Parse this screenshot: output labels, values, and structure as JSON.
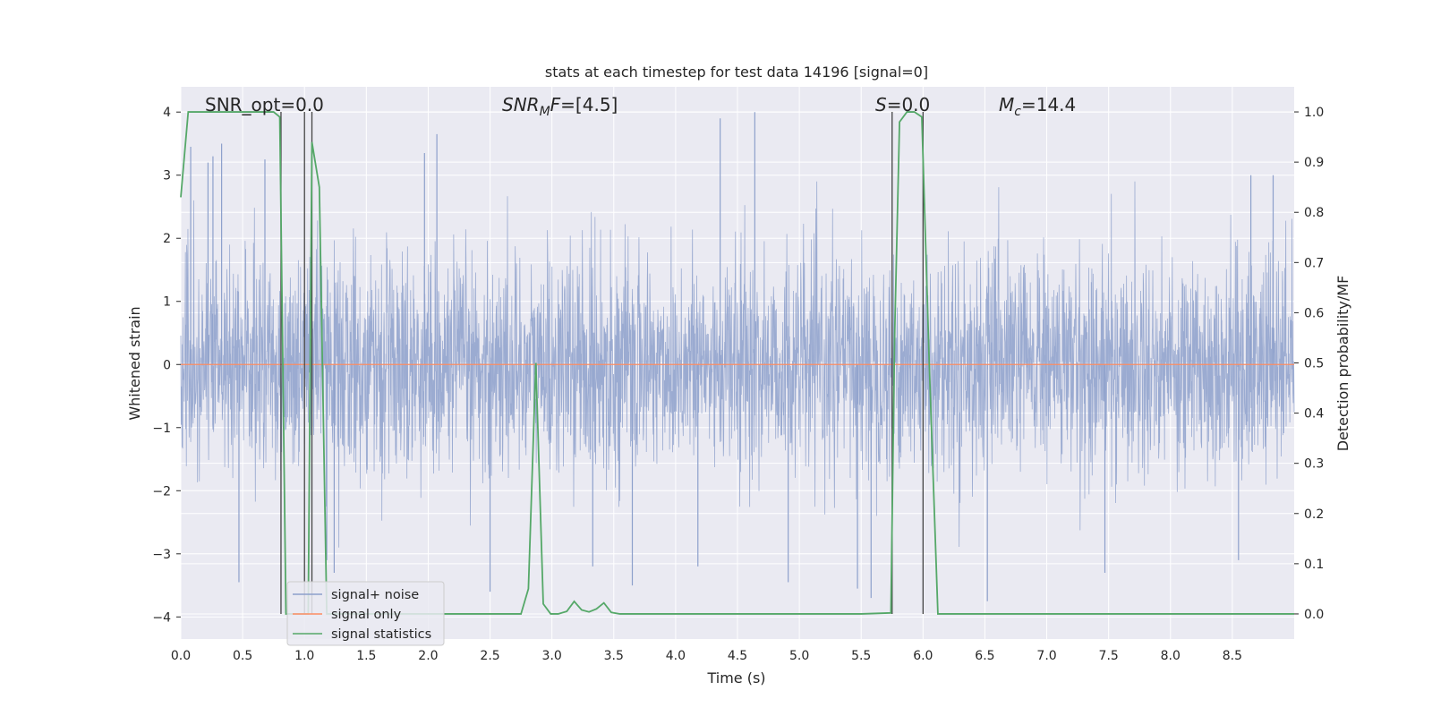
{
  "chart_data": {
    "type": "line",
    "title": "stats at each timestep for test data 14196 [signal=0]",
    "xlabel": "Time (s)",
    "ylabel_left": "Whitened strain",
    "ylabel_right": "Detection probability/MF",
    "xlim": [
      0,
      9.0
    ],
    "ylim_left": [
      -4.35,
      4.4
    ],
    "ylim_right": [
      -0.05,
      1.05
    ],
    "x_ticks": [
      0.0,
      0.5,
      1.0,
      1.5,
      2.0,
      2.5,
      3.0,
      3.5,
      4.0,
      4.5,
      5.0,
      5.5,
      6.0,
      6.5,
      7.0,
      7.5,
      8.0,
      8.5
    ],
    "x_tick_labels": [
      "0.0",
      "0.5",
      "1.0",
      "1.5",
      "2.0",
      "2.5",
      "3.0",
      "3.5",
      "4.0",
      "4.5",
      "5.0",
      "5.5",
      "6.0",
      "6.5",
      "7.0",
      "7.5",
      "8.0",
      "8.5"
    ],
    "y_left_ticks": [
      -4,
      -3,
      -2,
      -1,
      0,
      1,
      2,
      3,
      4
    ],
    "y_left_tick_labels": [
      "−4",
      "−3",
      "−2",
      "−1",
      "0",
      "1",
      "2",
      "3",
      "4"
    ],
    "y_right_ticks": [
      0.0,
      0.1,
      0.2,
      0.3,
      0.4,
      0.5,
      0.6,
      0.7,
      0.8,
      0.9,
      1.0
    ],
    "y_right_tick_labels": [
      "0.0",
      "0.1",
      "0.2",
      "0.3",
      "0.4",
      "0.5",
      "0.6",
      "0.7",
      "0.8",
      "0.9",
      "1.0"
    ],
    "grid": true,
    "legend_position": "lower-left",
    "annotations": [
      {
        "label": "SNR_opt",
        "value": "=0.0"
      },
      {
        "label": "SNR_MF",
        "value": "=[4.5]"
      },
      {
        "label": "S",
        "value": "=0.0"
      },
      {
        "label": "M_c",
        "value": "=14.4"
      }
    ],
    "vertical_lines_x": [
      0.81,
      1.0,
      1.06,
      5.75,
      6.0
    ],
    "series": [
      {
        "name": "signal+ noise",
        "axis": "left",
        "color": "#8da0cb",
        "description_envelope": {
          "typical_max": 2.0,
          "typical_min": -2.0,
          "noise_seed": 14196
        },
        "spikes": [
          {
            "x": 0.08,
            "y": 3.45
          },
          {
            "x": 0.22,
            "y": 3.2
          },
          {
            "x": 0.26,
            "y": 3.3
          },
          {
            "x": 0.33,
            "y": 3.5
          },
          {
            "x": 0.47,
            "y": -3.45
          },
          {
            "x": 0.68,
            "y": 3.25
          },
          {
            "x": 1.18,
            "y": -3.1
          },
          {
            "x": 1.24,
            "y": -3.3
          },
          {
            "x": 1.97,
            "y": 3.35
          },
          {
            "x": 2.07,
            "y": 3.65
          },
          {
            "x": 2.5,
            "y": -3.6
          },
          {
            "x": 3.33,
            "y": -3.2
          },
          {
            "x": 3.65,
            "y": -3.5
          },
          {
            "x": 4.18,
            "y": -3.2
          },
          {
            "x": 4.64,
            "y": 4.0
          },
          {
            "x": 4.36,
            "y": 3.9
          },
          {
            "x": 4.91,
            "y": -3.45
          },
          {
            "x": 5.47,
            "y": -3.55
          },
          {
            "x": 5.58,
            "y": -3.7
          },
          {
            "x": 6.52,
            "y": -3.75
          },
          {
            "x": 7.47,
            "y": -3.3
          },
          {
            "x": 8.65,
            "y": 3.0
          },
          {
            "x": 8.83,
            "y": 3.0
          },
          {
            "x": 8.55,
            "y": -3.1
          }
        ]
      },
      {
        "name": "signal only",
        "axis": "left",
        "color": "#fc8d62",
        "x": [
          0.0,
          9.0
        ],
        "y": [
          0.0,
          0.0
        ]
      },
      {
        "name": "signal statistics",
        "axis": "right",
        "color": "#55a868",
        "x": [
          0.0,
          0.06,
          0.12,
          0.5,
          0.75,
          0.8,
          0.85,
          0.9,
          0.95,
          1.0,
          1.03,
          1.06,
          1.12,
          1.18,
          1.25,
          2.0,
          2.5,
          2.75,
          2.81,
          2.87,
          2.93,
          2.99,
          3.05,
          3.12,
          3.18,
          3.24,
          3.3,
          3.36,
          3.42,
          3.48,
          3.55,
          4.0,
          5.0,
          5.5,
          5.74,
          5.77,
          5.81,
          5.87,
          5.93,
          5.99,
          6.05,
          6.12,
          6.2,
          7.0,
          8.0,
          9.0
        ],
        "y": [
          0.83,
          1.0,
          1.0,
          1.0,
          1.0,
          0.99,
          0.0,
          0.0,
          0.0,
          0.0,
          0.0,
          0.94,
          0.85,
          0.0,
          0.0,
          0.0,
          0.0,
          0.0,
          0.05,
          0.5,
          0.02,
          0.0,
          0.0,
          0.005,
          0.025,
          0.008,
          0.004,
          0.01,
          0.022,
          0.003,
          0.0,
          0.0,
          0.0,
          0.0,
          0.002,
          0.55,
          0.98,
          1.0,
          1.0,
          0.99,
          0.5,
          0.0,
          0.0,
          0.0,
          0.0,
          0.0
        ]
      }
    ]
  }
}
